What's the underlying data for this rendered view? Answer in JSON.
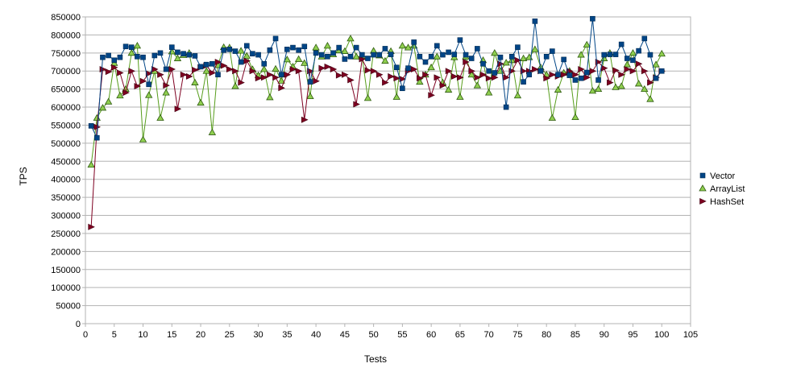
{
  "chart_data": {
    "type": "line",
    "title": "",
    "xlabel": "Tests",
    "ylabel": "TPS",
    "xlim": [
      0,
      105
    ],
    "ylim": [
      0,
      850000
    ],
    "x_ticks": [
      0,
      5,
      10,
      15,
      20,
      25,
      30,
      35,
      40,
      45,
      50,
      55,
      60,
      65,
      70,
      75,
      80,
      85,
      90,
      95,
      100,
      105
    ],
    "y_ticks": [
      0,
      50000,
      100000,
      150000,
      200000,
      250000,
      300000,
      350000,
      400000,
      450000,
      500000,
      550000,
      600000,
      650000,
      700000,
      750000,
      800000,
      850000
    ],
    "grid": "horizontal",
    "legend": "right",
    "x": [
      1,
      2,
      3,
      4,
      5,
      6,
      7,
      8,
      9,
      10,
      11,
      12,
      13,
      14,
      15,
      16,
      17,
      18,
      19,
      20,
      21,
      22,
      23,
      24,
      25,
      26,
      27,
      28,
      29,
      30,
      31,
      32,
      33,
      34,
      35,
      36,
      37,
      38,
      39,
      40,
      41,
      42,
      43,
      44,
      45,
      46,
      47,
      48,
      49,
      50,
      51,
      52,
      53,
      54,
      55,
      56,
      57,
      58,
      59,
      60,
      61,
      62,
      63,
      64,
      65,
      66,
      67,
      68,
      69,
      70,
      71,
      72,
      73,
      74,
      75,
      76,
      77,
      78,
      79,
      80,
      81,
      82,
      83,
      84,
      85,
      86,
      87,
      88,
      89,
      90,
      91,
      92,
      93,
      94,
      95,
      96,
      97,
      98,
      99,
      100
    ],
    "series": [
      {
        "name": "Vector",
        "color": "#004586",
        "marker": "square",
        "values": [
          548000,
          515000,
          738000,
          743000,
          730000,
          738000,
          768000,
          766000,
          740000,
          738000,
          663000,
          743000,
          750000,
          705000,
          766000,
          752000,
          748000,
          745000,
          742000,
          712000,
          718000,
          720000,
          690000,
          758000,
          760000,
          755000,
          725000,
          770000,
          748000,
          745000,
          720000,
          758000,
          790000,
          690000,
          760000,
          765000,
          758000,
          768000,
          670000,
          750000,
          745000,
          740000,
          750000,
          765000,
          733000,
          740000,
          765000,
          745000,
          735000,
          745000,
          745000,
          762000,
          746000,
          710000,
          652000,
          708000,
          780000,
          740000,
          725000,
          740000,
          770000,
          745000,
          752000,
          746000,
          786000,
          745000,
          735000,
          762000,
          720000,
          700000,
          695000,
          738000,
          600000,
          740000,
          766000,
          670000,
          690000,
          838000,
          700000,
          740000,
          755000,
          690000,
          732000,
          688000,
          675000,
          680000,
          696000,
          845000,
          675000,
          745000,
          746000,
          746000,
          774000,
          735000,
          730000,
          756000,
          790000,
          745000,
          680000,
          700000
        ]
      },
      {
        "name": "ArrayList",
        "color": "#579d1c",
        "marker": "triangle",
        "values": [
          440000,
          570000,
          598000,
          615000,
          722000,
          632000,
          650000,
          750000,
          770000,
          510000,
          633000,
          700000,
          570000,
          640000,
          754000,
          735000,
          744000,
          750000,
          668000,
          612000,
          700000,
          530000,
          716000,
          766000,
          765000,
          658000,
          756000,
          742000,
          705000,
          688000,
          705000,
          627000,
          706000,
          673000,
          732000,
          712000,
          733000,
          722000,
          630000,
          765000,
          740000,
          770000,
          746000,
          757000,
          755000,
          790000,
          740000,
          740000,
          625000,
          756000,
          743000,
          728000,
          755000,
          628000,
          770000,
          765000,
          770000,
          670000,
          690000,
          710000,
          740000,
          668000,
          648000,
          738000,
          628000,
          740000,
          690000,
          660000,
          730000,
          640000,
          750000,
          700000,
          723000,
          730000,
          632000,
          735000,
          738000,
          760000,
          710000,
          690000,
          570000,
          648000,
          695000,
          700000,
          572000,
          745000,
          773000,
          645000,
          650000,
          735000,
          750000,
          655000,
          658000,
          718000,
          750000,
          665000,
          650000,
          622000,
          718000,
          748000
        ]
      },
      {
        "name": "HashSet",
        "color": "#7e0021",
        "marker": "arrow",
        "values": [
          268000,
          545000,
          705000,
          698000,
          710000,
          695000,
          640000,
          700000,
          658000,
          672000,
          693000,
          705000,
          690000,
          660000,
          705000,
          595000,
          690000,
          685000,
          703000,
          710000,
          715000,
          695000,
          725000,
          715000,
          705000,
          700000,
          668000,
          728000,
          700000,
          680000,
          682000,
          690000,
          682000,
          653000,
          690000,
          705000,
          700000,
          565000,
          700000,
          672000,
          708000,
          712000,
          705000,
          688000,
          690000,
          675000,
          608000,
          733000,
          702000,
          700000,
          690000,
          668000,
          685000,
          680000,
          678000,
          700000,
          705000,
          680000,
          690000,
          633000,
          682000,
          660000,
          700000,
          685000,
          682000,
          725000,
          700000,
          682000,
          690000,
          680000,
          682000,
          720000,
          682000,
          700000,
          730000,
          700000,
          700000,
          705000,
          700000,
          680000,
          690000,
          685000,
          690000,
          700000,
          690000,
          705000,
          682000,
          700000,
          725000,
          708000,
          668000,
          702000,
          690000,
          705000,
          700000,
          720000,
          700000,
          668000,
          682000,
          700000
        ]
      }
    ]
  }
}
